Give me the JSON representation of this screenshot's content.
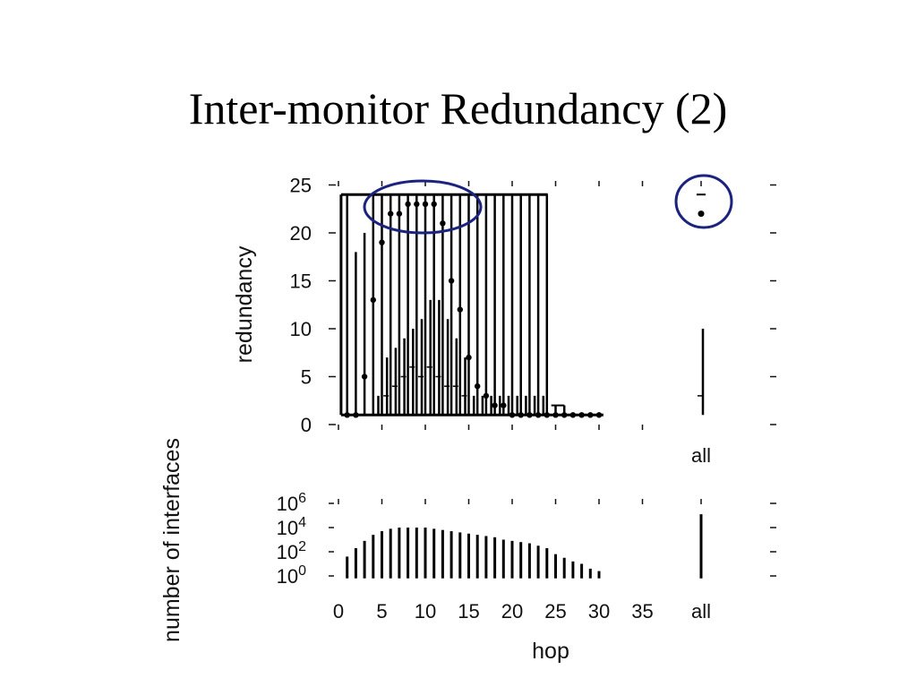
{
  "slide": {
    "title": "Inter-monitor Redundancy (2)"
  },
  "chart_data": [
    {
      "type": "box",
      "name": "redundancy-panel",
      "ylabel": "redundancy",
      "ylim": [
        0,
        25
      ],
      "yticks": [
        0,
        5,
        10,
        15,
        20,
        25
      ],
      "xlim": [
        -0.5,
        38.5
      ],
      "extra_category": "all",
      "hops": [
        1,
        2,
        3,
        4,
        5,
        6,
        7,
        8,
        9,
        10,
        11,
        12,
        13,
        14,
        15,
        16,
        17,
        18,
        19,
        20,
        21,
        22,
        23,
        24,
        25,
        26,
        27,
        28,
        29,
        30
      ],
      "median": [
        1,
        1,
        5,
        13,
        19,
        22,
        22,
        23,
        23,
        23,
        23,
        21,
        15,
        12,
        7,
        4,
        3,
        2,
        2,
        1,
        1,
        1,
        1,
        1,
        1,
        1,
        1,
        1,
        1,
        1
      ],
      "box_low": [
        1,
        1,
        1,
        1,
        1,
        1,
        1,
        1,
        1,
        1,
        1,
        1,
        1,
        1,
        1,
        1,
        1,
        1,
        1,
        1,
        1,
        1,
        1,
        1,
        1,
        1,
        1,
        1,
        1,
        1
      ],
      "box_high": [
        24,
        24,
        24,
        24,
        24,
        24,
        24,
        24,
        24,
        24,
        24,
        24,
        24,
        24,
        24,
        24,
        24,
        24,
        24,
        24,
        24,
        24,
        24,
        24,
        1,
        1,
        1,
        1,
        1,
        1
      ],
      "whisker_top": [
        24,
        18,
        20,
        24,
        24,
        24,
        24,
        24,
        24,
        24,
        24,
        24,
        24,
        24,
        24,
        24,
        24,
        24,
        24,
        24,
        24,
        24,
        24,
        24,
        2,
        2,
        1,
        1,
        1,
        1
      ],
      "inner_high": [
        1,
        1,
        1,
        1,
        3,
        7,
        8,
        9,
        10,
        11,
        13,
        13,
        11,
        9,
        7,
        3,
        3,
        3,
        3,
        3,
        3,
        3,
        3,
        3,
        1,
        1,
        1,
        1,
        1,
        1
      ],
      "inner_median": [
        1,
        1,
        1,
        1,
        1,
        3,
        4,
        5,
        6,
        5,
        6,
        5,
        4,
        4,
        3,
        1,
        1,
        1,
        1,
        1,
        1,
        1,
        1,
        1,
        1,
        1,
        1,
        1,
        1,
        1
      ],
      "all": {
        "median": 22,
        "upper": 24,
        "box_high": 10,
        "inner_median": 3,
        "low": 1
      }
    },
    {
      "type": "bar",
      "name": "interfaces-panel",
      "ylabel": "number of interfaces",
      "xlabel": "hop",
      "yscale": "log",
      "ytick_labels": [
        {
          "base": "10",
          "exp": "0",
          "log": 0
        },
        {
          "base": "10",
          "exp": "2",
          "log": 2
        },
        {
          "base": "10",
          "exp": "4",
          "log": 4
        },
        {
          "base": "10",
          "exp": "6",
          "log": 6
        }
      ],
      "xticks": [
        0,
        5,
        10,
        15,
        20,
        25,
        30,
        35
      ],
      "extra_category": "all",
      "hops": [
        1,
        2,
        3,
        4,
        5,
        6,
        7,
        8,
        9,
        10,
        11,
        12,
        13,
        14,
        15,
        16,
        17,
        18,
        19,
        20,
        21,
        22,
        23,
        24,
        25,
        26,
        27,
        28,
        29,
        30
      ],
      "log_counts": [
        1.6,
        2.3,
        2.9,
        3.4,
        3.7,
        3.9,
        4.0,
        4.0,
        4.0,
        4.0,
        3.9,
        3.8,
        3.7,
        3.6,
        3.5,
        3.4,
        3.3,
        3.2,
        3.0,
        2.9,
        2.8,
        2.7,
        2.5,
        2.3,
        1.8,
        1.5,
        1.2,
        1.0,
        0.6,
        0.4
      ],
      "all_log_count": 5.1
    }
  ]
}
